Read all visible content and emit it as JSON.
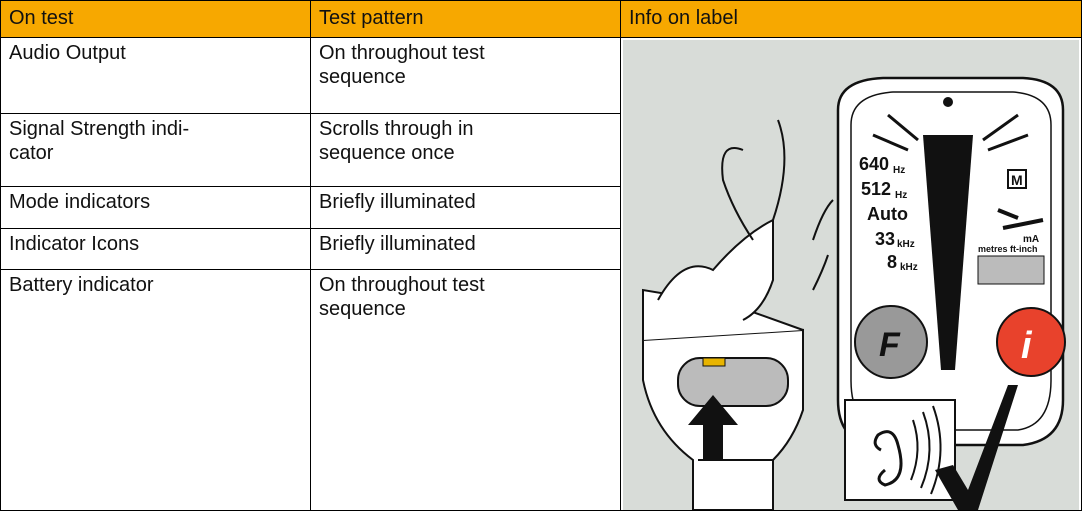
{
  "table": {
    "header": [
      "On test",
      "Test pattern",
      "Info on label"
    ],
    "rows": [
      [
        [
          "Audio Output"
        ],
        [
          "On throughout test",
          "sequence"
        ]
      ],
      [
        [
          "Signal Strength indi-",
          "cator"
        ],
        [
          "Scrolls through in",
          "sequence once"
        ]
      ],
      [
        [
          "Mode indicators"
        ],
        [
          "Briefly illuminated"
        ]
      ],
      [
        [
          "Indicator Icons"
        ],
        [
          "Briefly illuminated"
        ]
      ],
      [
        [
          "Battery indicator"
        ],
        [
          "On throughout test",
          "sequence"
        ]
      ]
    ]
  },
  "illustration": {
    "freq_labels": [
      "640",
      "512",
      "Auto",
      "33",
      "8"
    ],
    "units": [
      "Hz",
      "Hz",
      "kHz",
      "kHz"
    ],
    "mode_label": "M",
    "current_label": "mA",
    "distance_label": "metres ft-inch",
    "f_button": "F",
    "i_button": "i"
  }
}
